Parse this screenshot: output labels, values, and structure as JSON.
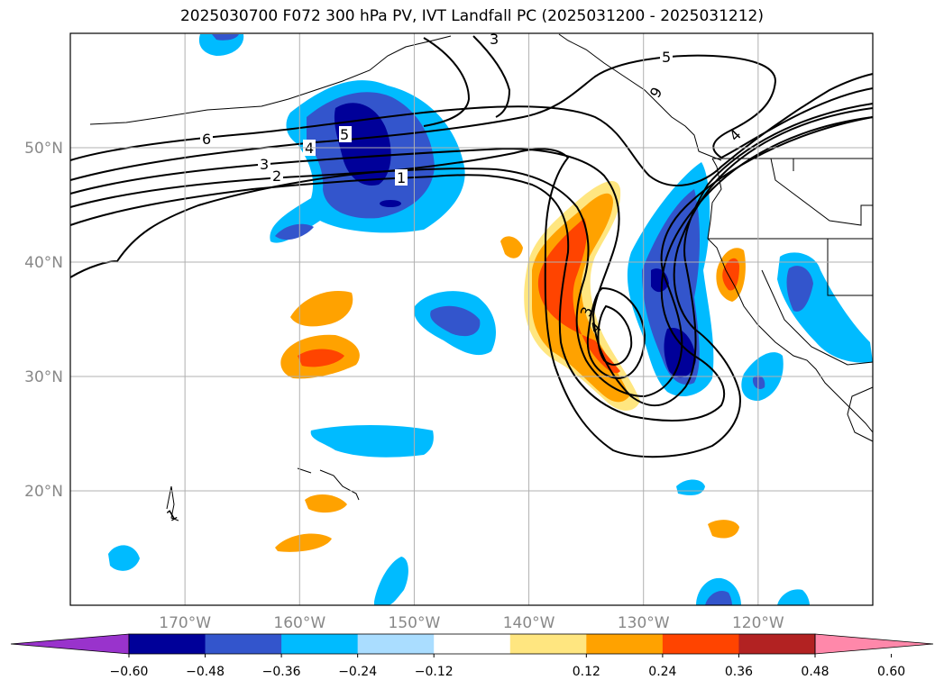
{
  "title": "2025030700 F072 300 hPa PV, IVT Landfall PC (2025031200 - 2025031212)",
  "map": {
    "lon_range": [
      -180,
      -110
    ],
    "lat_range": [
      10,
      60
    ],
    "lon_ticks": [
      {
        "value": -170,
        "label": "170°W"
      },
      {
        "value": -160,
        "label": "160°W"
      },
      {
        "value": -150,
        "label": "150°W"
      },
      {
        "value": -140,
        "label": "140°W"
      },
      {
        "value": -130,
        "label": "130°W"
      },
      {
        "value": -120,
        "label": "120°W"
      }
    ],
    "lat_ticks": [
      {
        "value": 20,
        "label": "20°N"
      },
      {
        "value": 30,
        "label": "30°N"
      },
      {
        "value": 40,
        "label": "40°N"
      },
      {
        "value": 50,
        "label": "50°N"
      }
    ],
    "grid": true,
    "contour_labels": [
      "6",
      "5",
      "4",
      "3",
      "2",
      "1",
      "3",
      "5",
      "9",
      "4",
      "3",
      "4",
      "1"
    ]
  },
  "colorbar": {
    "ticks": [
      "−0.60",
      "−0.48",
      "−0.36",
      "−0.24",
      "−0.12",
      "0.12",
      "0.24",
      "0.36",
      "0.48",
      "0.60"
    ],
    "colors": [
      "#9933cc",
      "#000099",
      "#3355cc",
      "#00bbff",
      "#aaddff",
      "#ffffff",
      "#ffe680",
      "#ffa200",
      "#ff4400",
      "#b22222",
      "#ff88aa"
    ]
  }
}
